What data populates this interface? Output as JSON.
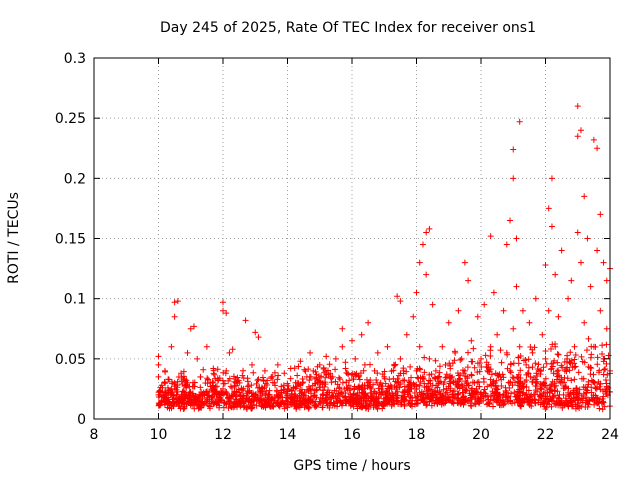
{
  "chart_data": {
    "type": "scatter",
    "title": "Day 245 of 2025, Rate Of TEC Index for receiver ons1",
    "xlabel": "GPS time / hours",
    "ylabel": "ROTI / TECUs",
    "xlim": [
      8,
      24
    ],
    "ylim": [
      0,
      0.3
    ],
    "x_ticks": [
      8,
      10,
      12,
      14,
      16,
      18,
      20,
      22,
      24
    ],
    "x_tick_labels": [
      "8",
      "10",
      "12",
      "14",
      "16",
      "18",
      "20",
      "22",
      "24"
    ],
    "y_ticks": [
      0,
      0.05,
      0.1,
      0.15,
      0.2,
      0.25,
      0.3
    ],
    "y_tick_labels": [
      "0",
      "0.05",
      "0.1",
      "0.15",
      "0.2",
      "0.25",
      "0.3"
    ],
    "grid": true,
    "marker": "plus",
    "color": "#ff0000",
    "series": [
      {
        "name": "ROTI",
        "points": [
          [
            10.0,
            0.02
          ],
          [
            10.0,
            0.035
          ],
          [
            10.0,
            0.045
          ],
          [
            10.0,
            0.052
          ],
          [
            10.1,
            0.015
          ],
          [
            10.1,
            0.028
          ],
          [
            10.2,
            0.022
          ],
          [
            10.2,
            0.04
          ],
          [
            10.3,
            0.018
          ],
          [
            10.3,
            0.033
          ],
          [
            10.4,
            0.025
          ],
          [
            10.4,
            0.06
          ],
          [
            10.5,
            0.097
          ],
          [
            10.5,
            0.085
          ],
          [
            10.5,
            0.03
          ],
          [
            10.6,
            0.098
          ],
          [
            10.6,
            0.02
          ],
          [
            10.7,
            0.038
          ],
          [
            10.8,
            0.022
          ],
          [
            10.9,
            0.055
          ],
          [
            10.9,
            0.03
          ],
          [
            11.0,
            0.075
          ],
          [
            11.0,
            0.018
          ],
          [
            11.1,
            0.077
          ],
          [
            11.1,
            0.027
          ],
          [
            11.2,
            0.05
          ],
          [
            11.3,
            0.035
          ],
          [
            11.4,
            0.022
          ],
          [
            11.5,
            0.06
          ],
          [
            11.5,
            0.015
          ],
          [
            11.6,
            0.03
          ],
          [
            11.7,
            0.042
          ],
          [
            11.8,
            0.02
          ],
          [
            11.9,
            0.034
          ],
          [
            12.0,
            0.097
          ],
          [
            12.0,
            0.09
          ],
          [
            12.0,
            0.025
          ],
          [
            12.1,
            0.088
          ],
          [
            12.1,
            0.04
          ],
          [
            12.2,
            0.055
          ],
          [
            12.2,
            0.018
          ],
          [
            12.3,
            0.058
          ],
          [
            12.4,
            0.03
          ],
          [
            12.5,
            0.022
          ],
          [
            12.6,
            0.036
          ],
          [
            12.7,
            0.082
          ],
          [
            12.7,
            0.015
          ],
          [
            12.8,
            0.028
          ],
          [
            12.9,
            0.045
          ],
          [
            13.0,
            0.072
          ],
          [
            13.0,
            0.02
          ],
          [
            13.1,
            0.068
          ],
          [
            13.1,
            0.033
          ],
          [
            13.2,
            0.025
          ],
          [
            13.3,
            0.04
          ],
          [
            13.4,
            0.018
          ],
          [
            13.5,
            0.035
          ],
          [
            13.6,
            0.03
          ],
          [
            13.7,
            0.045
          ],
          [
            13.8,
            0.022
          ],
          [
            13.9,
            0.038
          ],
          [
            14.0,
            0.025
          ],
          [
            14.1,
            0.042
          ],
          [
            14.2,
            0.015
          ],
          [
            14.3,
            0.03
          ],
          [
            14.4,
            0.048
          ],
          [
            14.5,
            0.02
          ],
          [
            14.6,
            0.035
          ],
          [
            14.7,
            0.055
          ],
          [
            14.7,
            0.025
          ],
          [
            14.8,
            0.04
          ],
          [
            14.9,
            0.018
          ],
          [
            15.0,
            0.045
          ],
          [
            15.1,
            0.03
          ],
          [
            15.2,
            0.052
          ],
          [
            15.3,
            0.022
          ],
          [
            15.4,
            0.035
          ],
          [
            15.5,
            0.05
          ],
          [
            15.6,
            0.02
          ],
          [
            15.7,
            0.06
          ],
          [
            15.7,
            0.075
          ],
          [
            15.8,
            0.042
          ],
          [
            15.9,
            0.028
          ],
          [
            16.0,
            0.065
          ],
          [
            16.0,
            0.018
          ],
          [
            16.1,
            0.05
          ],
          [
            16.2,
            0.035
          ],
          [
            16.3,
            0.07
          ],
          [
            16.3,
            0.022
          ],
          [
            16.4,
            0.045
          ],
          [
            16.5,
            0.08
          ],
          [
            16.5,
            0.03
          ],
          [
            16.6,
            0.025
          ],
          [
            16.7,
            0.04
          ],
          [
            16.8,
            0.055
          ],
          [
            16.9,
            0.02
          ],
          [
            17.0,
            0.035
          ],
          [
            17.1,
            0.06
          ],
          [
            17.2,
            0.028
          ],
          [
            17.3,
            0.045
          ],
          [
            17.4,
            0.102
          ],
          [
            17.4,
            0.03
          ],
          [
            17.5,
            0.098
          ],
          [
            17.5,
            0.05
          ],
          [
            17.6,
            0.04
          ],
          [
            17.7,
            0.07
          ],
          [
            17.8,
            0.025
          ],
          [
            17.9,
            0.085
          ],
          [
            18.0,
            0.105
          ],
          [
            18.0,
            0.04
          ],
          [
            18.1,
            0.13
          ],
          [
            18.1,
            0.06
          ],
          [
            18.2,
            0.145
          ],
          [
            18.2,
            0.035
          ],
          [
            18.3,
            0.155
          ],
          [
            18.3,
            0.12
          ],
          [
            18.4,
            0.158
          ],
          [
            18.4,
            0.05
          ],
          [
            18.5,
            0.095
          ],
          [
            18.6,
            0.04
          ],
          [
            18.7,
            0.03
          ],
          [
            18.8,
            0.06
          ],
          [
            18.9,
            0.045
          ],
          [
            19.0,
            0.08
          ],
          [
            19.1,
            0.035
          ],
          [
            19.2,
            0.055
          ],
          [
            19.3,
            0.09
          ],
          [
            19.4,
            0.05
          ],
          [
            19.5,
            0.13
          ],
          [
            19.5,
            0.04
          ],
          [
            19.6,
            0.115
          ],
          [
            19.7,
            0.065
          ],
          [
            19.8,
            0.03
          ],
          [
            19.9,
            0.085
          ],
          [
            20.0,
            0.05
          ],
          [
            20.1,
            0.095
          ],
          [
            20.2,
            0.04
          ],
          [
            20.3,
            0.152
          ],
          [
            20.3,
            0.06
          ],
          [
            20.4,
            0.105
          ],
          [
            20.5,
            0.07
          ],
          [
            20.6,
            0.035
          ],
          [
            20.7,
            0.09
          ],
          [
            20.8,
            0.145
          ],
          [
            20.8,
            0.055
          ],
          [
            20.9,
            0.165
          ],
          [
            20.9,
            0.04
          ],
          [
            21.0,
            0.2
          ],
          [
            21.0,
            0.224
          ],
          [
            21.0,
            0.075
          ],
          [
            21.1,
            0.15
          ],
          [
            21.1,
            0.11
          ],
          [
            21.2,
            0.247
          ],
          [
            21.2,
            0.06
          ],
          [
            21.3,
            0.09
          ],
          [
            21.4,
            0.045
          ],
          [
            21.5,
            0.08
          ],
          [
            21.6,
            0.055
          ],
          [
            21.7,
            0.1
          ],
          [
            21.8,
            0.04
          ],
          [
            21.9,
            0.07
          ],
          [
            22.0,
            0.128
          ],
          [
            22.0,
            0.05
          ],
          [
            22.1,
            0.175
          ],
          [
            22.1,
            0.09
          ],
          [
            22.2,
            0.2
          ],
          [
            22.2,
            0.16
          ],
          [
            22.3,
            0.12
          ],
          [
            22.3,
            0.06
          ],
          [
            22.4,
            0.085
          ],
          [
            22.5,
            0.14
          ],
          [
            22.6,
            0.04
          ],
          [
            22.7,
            0.1
          ],
          [
            22.8,
            0.115
          ],
          [
            22.9,
            0.06
          ],
          [
            23.0,
            0.26
          ],
          [
            23.0,
            0.235
          ],
          [
            23.0,
            0.155
          ],
          [
            23.1,
            0.24
          ],
          [
            23.1,
            0.13
          ],
          [
            23.2,
            0.185
          ],
          [
            23.2,
            0.08
          ],
          [
            23.3,
            0.15
          ],
          [
            23.4,
            0.11
          ],
          [
            23.5,
            0.232
          ],
          [
            23.5,
            0.06
          ],
          [
            23.6,
            0.225
          ],
          [
            23.6,
            0.14
          ],
          [
            23.7,
            0.17
          ],
          [
            23.7,
            0.09
          ],
          [
            23.8,
            0.13
          ],
          [
            23.8,
            0.05
          ],
          [
            23.9,
            0.115
          ],
          [
            23.9,
            0.075
          ],
          [
            24.0,
            0.125
          ],
          [
            24.0,
            0.04
          ]
        ]
      }
    ],
    "baseline_band": [
      {
        "x": [
          10.0,
          14.0
        ],
        "y": [
          0.008,
          0.04
        ]
      },
      {
        "x": [
          14.0,
          17.0
        ],
        "y": [
          0.008,
          0.045
        ]
      },
      {
        "x": [
          17.0,
          19.0
        ],
        "y": [
          0.01,
          0.05
        ]
      },
      {
        "x": [
          19.0,
          21.5
        ],
        "y": [
          0.01,
          0.06
        ]
      },
      {
        "x": [
          21.5,
          24.0
        ],
        "y": [
          0.008,
          0.065
        ]
      }
    ]
  }
}
